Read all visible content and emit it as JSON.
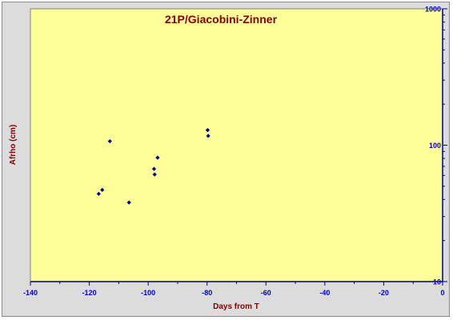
{
  "chart_data": {
    "type": "scatter",
    "title": "21P/Giacobini-Zinner",
    "xlabel": "Days from T",
    "ylabel": "Afrho (cm)",
    "xlim": [
      -140,
      0
    ],
    "ylim": [
      10,
      1000
    ],
    "y_scale": "log",
    "y_axis_side": "right",
    "grid": false,
    "x_ticks": [
      -140,
      -120,
      -100,
      -80,
      -60,
      -40,
      -20,
      0
    ],
    "y_ticks": [
      10,
      100,
      1000
    ],
    "series": [
      {
        "points": [
          {
            "x": -116.8,
            "y": 44
          },
          {
            "x": -115.6,
            "y": 47
          },
          {
            "x": -113.0,
            "y": 107
          },
          {
            "x": -106.5,
            "y": 38
          },
          {
            "x": -98.0,
            "y": 67
          },
          {
            "x": -97.8,
            "y": 61
          },
          {
            "x": -96.8,
            "y": 81
          },
          {
            "x": -79.8,
            "y": 129
          },
          {
            "x": -79.6,
            "y": 117
          }
        ]
      }
    ],
    "colors": {
      "plot_background": "#ffff99",
      "frame": "#dcdcdc",
      "title": "#800000",
      "axis_label": "#800000",
      "tick_label": "#0000c0",
      "marker": "#000080"
    }
  }
}
